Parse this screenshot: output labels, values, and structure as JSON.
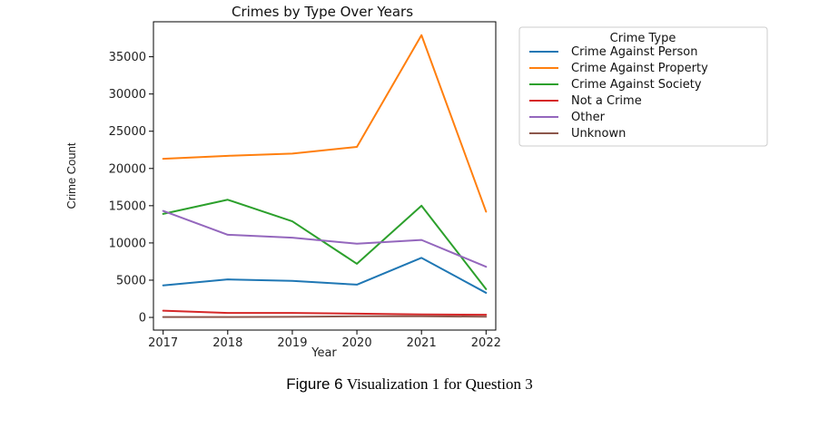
{
  "chart_data": {
    "type": "line",
    "title": "Crimes by Type Over Years",
    "xlabel": "Year",
    "ylabel": "Crime Count",
    "x": [
      2017,
      2018,
      2019,
      2020,
      2021,
      2022
    ],
    "xlim": [
      2016.85,
      2022.15
    ],
    "ylim": [
      -1700,
      39700
    ],
    "yticks": [
      0,
      5000,
      10000,
      15000,
      20000,
      25000,
      30000,
      35000
    ],
    "grid": false,
    "legend": {
      "title": "Crime Type",
      "placement": "outside-right-top"
    },
    "series": [
      {
        "name": "Crime Against Person",
        "color": "#1f77b4",
        "values": [
          4300,
          5100,
          4900,
          4400,
          8000,
          3300
        ]
      },
      {
        "name": "Crime Against Property",
        "color": "#ff7f0e",
        "values": [
          21300,
          21700,
          22000,
          22900,
          37900,
          14200
        ]
      },
      {
        "name": "Crime Against Society",
        "color": "#2ca02c",
        "values": [
          13900,
          15800,
          12900,
          7200,
          15000,
          3800
        ]
      },
      {
        "name": "Not a Crime",
        "color": "#d62728",
        "values": [
          900,
          600,
          600,
          500,
          400,
          350
        ]
      },
      {
        "name": "Other",
        "color": "#9467bd",
        "values": [
          14300,
          11100,
          10700,
          9900,
          10400,
          6800
        ]
      },
      {
        "name": "Unknown",
        "color": "#8c564b",
        "values": [
          50,
          50,
          80,
          150,
          150,
          100
        ]
      }
    ]
  },
  "caption": {
    "label": "Figure 6",
    "text": "Visualization 1 for Question 3"
  }
}
